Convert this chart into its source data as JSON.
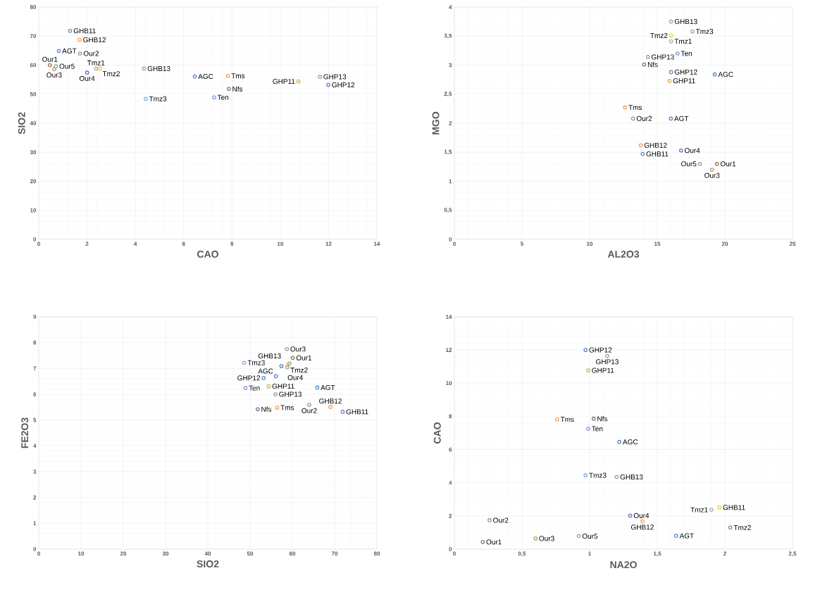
{
  "chart_data": [
    {
      "type": "scatter",
      "xlabel": "CAO",
      "ylabel": "SIO2",
      "marker": "circle",
      "grid": true,
      "xlim": [
        0,
        14
      ],
      "ylim": [
        0,
        80
      ],
      "xticks": [
        0,
        2,
        4,
        6,
        8,
        10,
        12,
        14
      ],
      "yticks": [
        0,
        10,
        20,
        30,
        40,
        50,
        60,
        70,
        80
      ],
      "x": [
        1.3,
        0.83,
        1.69,
        1.71,
        0.46,
        0.71,
        0.64,
        2.0,
        2.37,
        2.53,
        4.36,
        4.43,
        6.46,
        7.83,
        7.87,
        7.26,
        10.75,
        11.64,
        11.99
      ],
      "values": [
        71.8,
        64.9,
        68.7,
        64.0,
        60.0,
        59.6,
        58.6,
        57.4,
        58.8,
        58.8,
        58.8,
        48.4,
        56.1,
        56.3,
        51.8,
        48.9,
        54.4,
        56.0,
        53.2
      ],
      "colors": [
        "#6f8fc8",
        "#5b8bd0",
        "#f4a460",
        "#999999",
        "#a0785a",
        "#8fb07f",
        "#b5a36b",
        "#5b7fc0",
        "#b0b0b0",
        "#f2c94c",
        "#a5a5a5",
        "#7fb0e6",
        "#5b8bd0",
        "#f4a460",
        "#6a7fa0",
        "#7fa0e0",
        "#d4b44a",
        "#8fb07f",
        "#5b8bd0"
      ],
      "annotations": [
        {
          "text": "GHB11",
          "x": 1.3,
          "y": 71.8
        },
        {
          "text": "AGT",
          "x": 0.83,
          "y": 64.9
        },
        {
          "text": "GHB12",
          "x": 1.69,
          "y": 68.7
        },
        {
          "text": "Our2",
          "x": 1.71,
          "y": 64.0
        },
        {
          "text": "Our1",
          "x": 0.46,
          "y": 60.0
        },
        {
          "text": "Our5",
          "x": 0.71,
          "y": 59.6
        },
        {
          "text": "Our3",
          "x": 0.64,
          "y": 58.6
        },
        {
          "text": "Our4",
          "x": 2.0,
          "y": 57.4
        },
        {
          "text": "Tmz1",
          "x": 2.37,
          "y": 58.8
        },
        {
          "text": "Tmz2",
          "x": 2.53,
          "y": 58.8
        },
        {
          "text": "GHB13",
          "x": 4.36,
          "y": 58.8
        },
        {
          "text": "Tmz3",
          "x": 4.43,
          "y": 48.4
        },
        {
          "text": "AGC",
          "x": 6.46,
          "y": 56.1
        },
        {
          "text": "Tms",
          "x": 7.83,
          "y": 56.3
        },
        {
          "text": "Nfs",
          "x": 7.87,
          "y": 51.8
        },
        {
          "text": "Ten",
          "x": 7.26,
          "y": 48.9
        },
        {
          "text": "GHP11",
          "x": 10.75,
          "y": 54.4
        },
        {
          "text": "GHP13",
          "x": 11.64,
          "y": 56.0
        },
        {
          "text": "GHP12",
          "x": 11.99,
          "y": 53.2
        }
      ]
    },
    {
      "type": "scatter",
      "xlabel": "AL2O3",
      "ylabel": "MGO",
      "marker": "circle",
      "grid": true,
      "xlim": [
        0,
        25
      ],
      "ylim": [
        0,
        4
      ],
      "xticks": [
        0,
        5,
        10,
        15,
        20,
        25
      ],
      "yticks": [
        0,
        {
          "value": 0.5,
          "label": "0,5"
        },
        1,
        {
          "value": 1.5,
          "label": "1,5"
        },
        2,
        {
          "value": 2.5,
          "label": "2,5"
        },
        3,
        {
          "value": 3.5,
          "label": "3,5"
        },
        4
      ],
      "x": [
        16.02,
        16.02,
        16.02,
        17.6,
        16.5,
        14.31,
        14.03,
        16.02,
        15.91,
        19.25,
        12.62,
        13.21,
        16.0,
        13.78,
        13.92,
        16.76,
        18.15,
        19.41,
        19.05
      ],
      "values": [
        3.75,
        3.51,
        3.41,
        3.58,
        3.2,
        3.14,
        3.01,
        2.88,
        2.73,
        2.84,
        2.27,
        2.08,
        2.08,
        1.62,
        1.47,
        1.53,
        1.3,
        1.3,
        1.2
      ],
      "colors": [
        "#a5a5a5",
        "#f2c94c",
        "#b0b0b0",
        "#7fb0e6",
        "#7fa0e0",
        "#8fb07f",
        "#6a7fa0",
        "#5b8bd0",
        "#d4b44a",
        "#5b8bd0",
        "#f4a460",
        "#999999",
        "#5b8bd0",
        "#f4a460",
        "#6f8fc8",
        "#5b7fc0",
        "#8fb07f",
        "#a0785a",
        "#b5a36b"
      ],
      "annotations": [
        {
          "text": "GHB13",
          "x": 16.02,
          "y": 3.75
        },
        {
          "text": "Tmz2",
          "x": 16.02,
          "y": 3.51
        },
        {
          "text": "Tmz1",
          "x": 16.02,
          "y": 3.41
        },
        {
          "text": "Tmz3",
          "x": 17.6,
          "y": 3.58
        },
        {
          "text": "Ten",
          "x": 16.5,
          "y": 3.2
        },
        {
          "text": "GHP13",
          "x": 14.31,
          "y": 3.14
        },
        {
          "text": "Nfs",
          "x": 14.03,
          "y": 3.01
        },
        {
          "text": "GHP12",
          "x": 16.02,
          "y": 2.88
        },
        {
          "text": "GHP11",
          "x": 15.91,
          "y": 2.73
        },
        {
          "text": "AGC",
          "x": 19.25,
          "y": 2.84
        },
        {
          "text": "Tms",
          "x": 12.62,
          "y": 2.27
        },
        {
          "text": "Our2",
          "x": 13.21,
          "y": 2.08
        },
        {
          "text": "AGT",
          "x": 16.0,
          "y": 2.08
        },
        {
          "text": "GHB12",
          "x": 13.78,
          "y": 1.62
        },
        {
          "text": "GHB11",
          "x": 13.92,
          "y": 1.47
        },
        {
          "text": "Our4",
          "x": 16.76,
          "y": 1.53
        },
        {
          "text": "Our5",
          "x": 18.15,
          "y": 1.3
        },
        {
          "text": "Our1",
          "x": 19.41,
          "y": 1.3
        },
        {
          "text": "Our3",
          "x": 19.05,
          "y": 1.2
        }
      ]
    },
    {
      "type": "scatter",
      "xlabel": "SIO2",
      "ylabel": "FE2O3",
      "marker": "circle",
      "grid": true,
      "xlim": [
        0,
        80
      ],
      "ylim": [
        0,
        9
      ],
      "xticks": [
        0,
        10,
        20,
        30,
        40,
        50,
        60,
        70,
        80
      ],
      "yticks": [
        0,
        1,
        2,
        3,
        4,
        5,
        6,
        7,
        8,
        9
      ],
      "x": [
        58.7,
        60.1,
        48.6,
        57.4,
        58.9,
        58.8,
        59.3,
        56.1,
        53.2,
        48.9,
        54.4,
        56.0,
        56.4,
        51.8,
        65.9,
        64.0,
        69.0,
        71.9
      ],
      "values": [
        7.75,
        7.41,
        7.22,
        7.09,
        7.13,
        7.04,
        7.19,
        6.7,
        6.63,
        6.24,
        6.31,
        6.0,
        5.48,
        5.42,
        6.26,
        5.59,
        5.51,
        5.32
      ],
      "colors": [
        "#b5a36b",
        "#a0785a",
        "#7fb0e6",
        "#5b7fc0",
        "#f2c94c",
        "#a5a5a5",
        "#8fb07f",
        "#5b8bd0",
        "#5b8bd0",
        "#7fa0e0",
        "#d4b44a",
        "#8fb07f",
        "#f4a460",
        "#6a7fa0",
        "#5b8bd0",
        "#999999",
        "#f4a460",
        "#6f8fc8"
      ],
      "annotations": [
        {
          "text": "Our3",
          "x": 58.7,
          "y": 7.75
        },
        {
          "text": "Our1",
          "x": 60.1,
          "y": 7.41
        },
        {
          "text": "Tmz3",
          "x": 48.6,
          "y": 7.22
        },
        {
          "text": "Our4",
          "x": 57.4,
          "y": 7.09
        },
        {
          "text": "Tmz2",
          "x": 58.9,
          "y": 7.13
        },
        {
          "text": "GHB13",
          "x": 58.8,
          "y": 7.04
        },
        {
          "text": "AGC",
          "x": 56.1,
          "y": 6.7
        },
        {
          "text": "GHP12",
          "x": 53.2,
          "y": 6.63
        },
        {
          "text": "Ten",
          "x": 48.9,
          "y": 6.24
        },
        {
          "text": "GHP11",
          "x": 54.4,
          "y": 6.31
        },
        {
          "text": "GHP13",
          "x": 56.0,
          "y": 6.0
        },
        {
          "text": "Tms",
          "x": 56.4,
          "y": 5.48
        },
        {
          "text": "Nfs",
          "x": 51.8,
          "y": 5.42
        },
        {
          "text": "AGT",
          "x": 65.9,
          "y": 6.26
        },
        {
          "text": "Our2",
          "x": 64.0,
          "y": 5.59
        },
        {
          "text": "GHB12",
          "x": 69.0,
          "y": 5.51
        },
        {
          "text": "GHB11",
          "x": 71.9,
          "y": 5.32
        }
      ]
    },
    {
      "type": "scatter",
      "xlabel": "NA2O",
      "ylabel": "CAO",
      "marker": "circle",
      "grid": true,
      "xlim": [
        0,
        2.5
      ],
      "ylim": [
        0,
        14
      ],
      "xticks": [
        0,
        {
          "value": 0.5,
          "label": "0,5"
        },
        1,
        {
          "value": 1.5,
          "label": "1,5"
        },
        2,
        {
          "value": 2.5,
          "label": "2,5"
        }
      ],
      "yticks": [
        0,
        2,
        4,
        6,
        8,
        10,
        12,
        14
      ],
      "x": [
        0.97,
        1.13,
        0.99,
        0.76,
        1.03,
        0.99,
        1.22,
        0.97,
        1.2,
        1.96,
        1.9,
        1.3,
        1.39,
        2.04,
        1.64,
        0.26,
        0.21,
        0.6,
        0.92
      ],
      "values": [
        12.0,
        11.64,
        10.77,
        7.82,
        7.86,
        7.25,
        6.46,
        4.45,
        4.35,
        2.51,
        2.37,
        2.02,
        1.67,
        1.3,
        0.8,
        1.74,
        0.43,
        0.64,
        0.78
      ],
      "colors": [
        "#5b8bd0",
        "#8fb07f",
        "#d4b44a",
        "#f4a460",
        "#6a7fa0",
        "#7fa0e0",
        "#5b8bd0",
        "#7fb0e6",
        "#a5a5a5",
        "#f2c94c",
        "#b0b0b0",
        "#5b7fc0",
        "#f4a460",
        "#6f8fc8",
        "#5b8bd0",
        "#999999",
        "#a0785a",
        "#b5a36b",
        "#8fb07f"
      ],
      "annotations": [
        {
          "text": "GHP12",
          "x": 0.97,
          "y": 12.0
        },
        {
          "text": "GHP13",
          "x": 1.13,
          "y": 11.64
        },
        {
          "text": "GHP11",
          "x": 0.99,
          "y": 10.77
        },
        {
          "text": "Tms",
          "x": 0.76,
          "y": 7.82
        },
        {
          "text": "Nfs",
          "x": 1.03,
          "y": 7.86
        },
        {
          "text": "Ten",
          "x": 0.99,
          "y": 7.25
        },
        {
          "text": "AGC",
          "x": 1.22,
          "y": 6.46
        },
        {
          "text": "Tmz3",
          "x": 0.97,
          "y": 4.45
        },
        {
          "text": "GHB13",
          "x": 1.2,
          "y": 4.35
        },
        {
          "text": "Tmz1",
          "x": 1.9,
          "y": 2.37
        },
        {
          "text": "Our4",
          "x": 1.3,
          "y": 2.02
        },
        {
          "text": "GHB12",
          "x": 1.39,
          "y": 1.67
        },
        {
          "text": "Tmz2",
          "x": 2.04,
          "y": 1.3
        },
        {
          "text": "GHB11",
          "x": 1.96,
          "y": 2.51
        },
        {
          "text": "AGT",
          "x": 1.64,
          "y": 0.8
        },
        {
          "text": "Our2",
          "x": 0.26,
          "y": 1.74
        },
        {
          "text": "Our1",
          "x": 0.21,
          "y": 0.43
        },
        {
          "text": "Our3",
          "x": 0.6,
          "y": 0.64
        },
        {
          "text": "Our5",
          "x": 0.92,
          "y": 0.78
        }
      ]
    }
  ]
}
